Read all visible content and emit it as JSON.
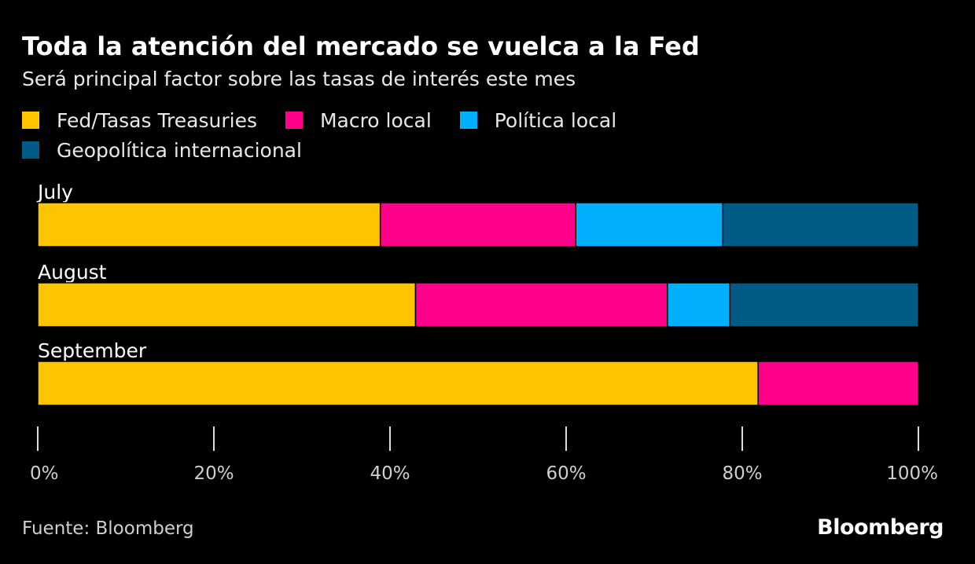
{
  "chart_data": {
    "type": "bar",
    "orientation": "horizontal",
    "stacked": true,
    "title": "Toda la atención del mercado se vuelca a la Fed",
    "subtitle": "Será principal factor sobre las tasas de interés este mes",
    "categories": [
      "July",
      "August",
      "September"
    ],
    "series": [
      {
        "name": "Fed/Tasas Treasuries",
        "color": "#ffc400",
        "values": [
          38.9,
          42.9,
          81.8
        ]
      },
      {
        "name": "Macro local",
        "color": "#ff0088",
        "values": [
          22.2,
          28.6,
          18.2
        ]
      },
      {
        "name": "Política local",
        "color": "#00b0ff",
        "values": [
          16.7,
          7.1,
          0
        ]
      },
      {
        "name": "Geopolítica internacional",
        "color": "#005a86",
        "values": [
          22.2,
          21.4,
          0
        ]
      }
    ],
    "xlim": [
      0,
      100
    ],
    "xticks": [
      "0%",
      "20%",
      "40%",
      "60%",
      "80%",
      "100%"
    ],
    "grid": false,
    "legend_position": "top-left",
    "source": "Fuente: Bloomberg",
    "logo": "Bloomberg"
  }
}
